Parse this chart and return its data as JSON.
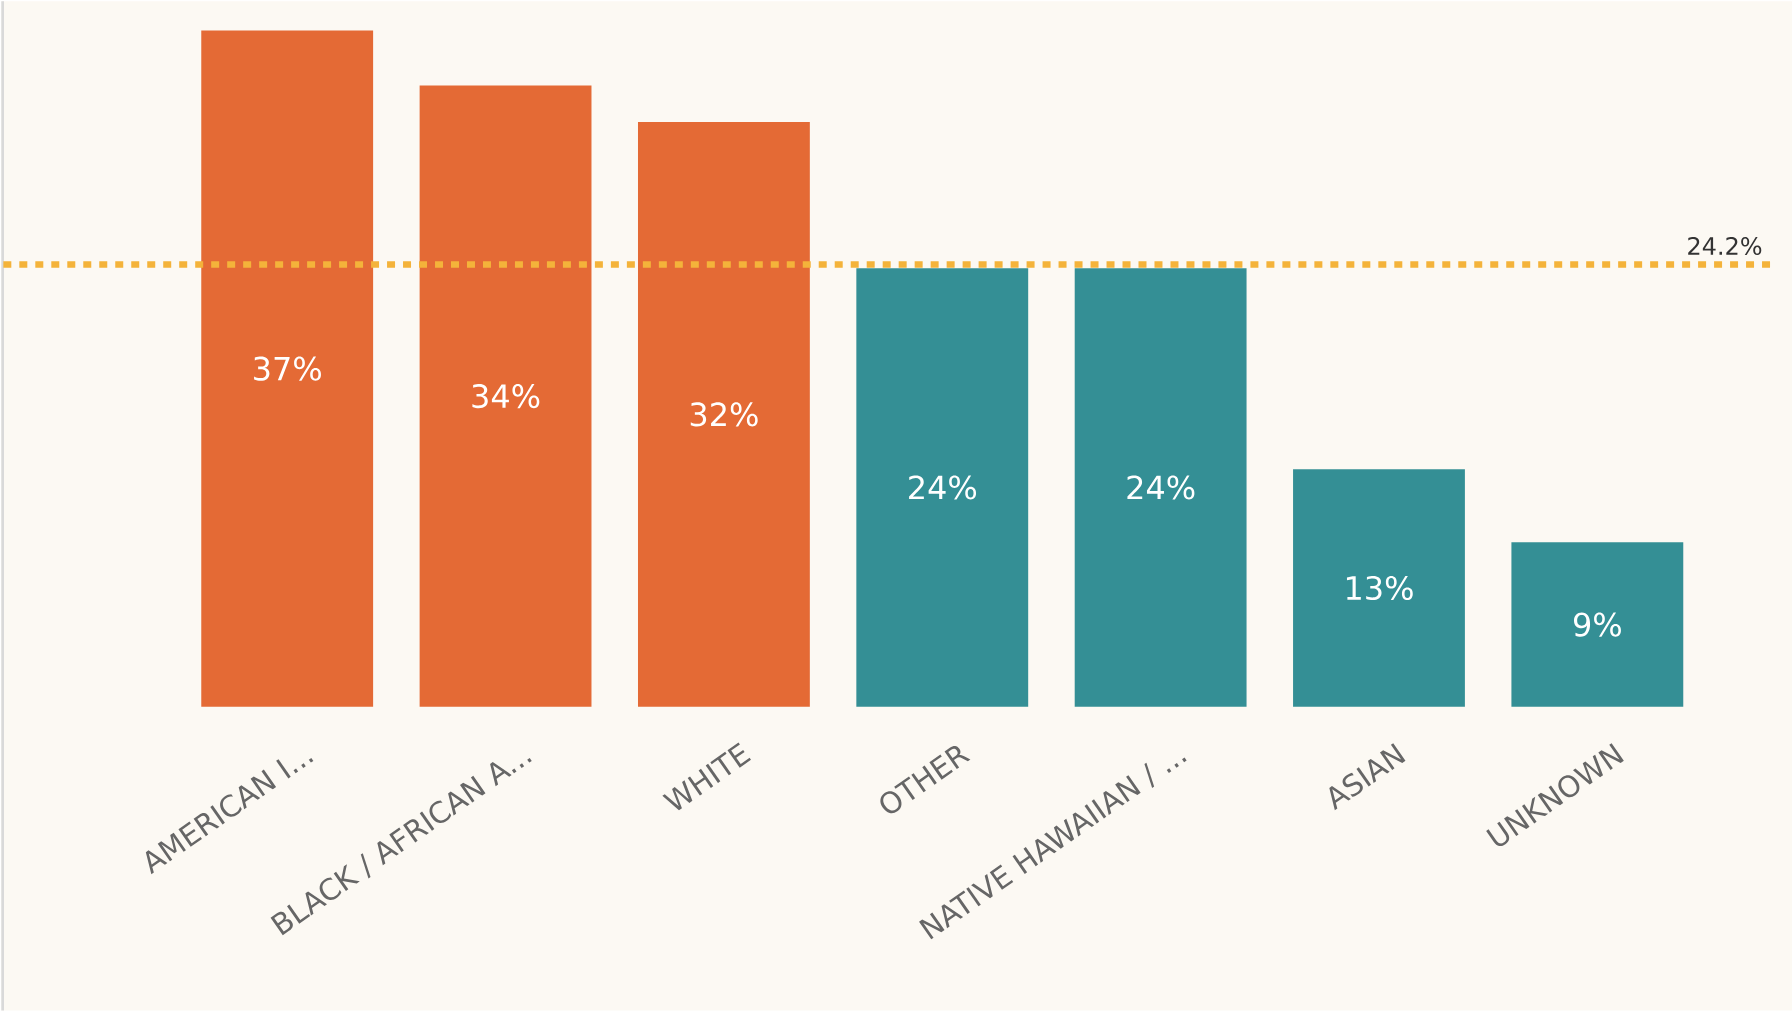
{
  "chart_data": {
    "type": "bar",
    "categories": [
      "AMERICAN I...",
      "BLACK / AFRICAN A...",
      "WHITE",
      "OTHER",
      "NATIVE HAWAIIAN / ...",
      "ASIAN",
      "UNKNOWN"
    ],
    "values": [
      37,
      34,
      32,
      24,
      24,
      13,
      9
    ],
    "value_labels": [
      "37%",
      "34%",
      "32%",
      "24%",
      "24%",
      "13%",
      "9%"
    ],
    "colors": [
      "#e46a35",
      "#e46a35",
      "#e46a35",
      "#348f95",
      "#348f95",
      "#348f95",
      "#348f95"
    ],
    "ylim": [
      0,
      38.6
    ],
    "tick_labels": "x",
    "ref_lines": [
      {
        "axis": "y",
        "value": 24.2,
        "label": "24.2%",
        "color": "#f4b33a",
        "line_style": "dotted"
      }
    ]
  }
}
